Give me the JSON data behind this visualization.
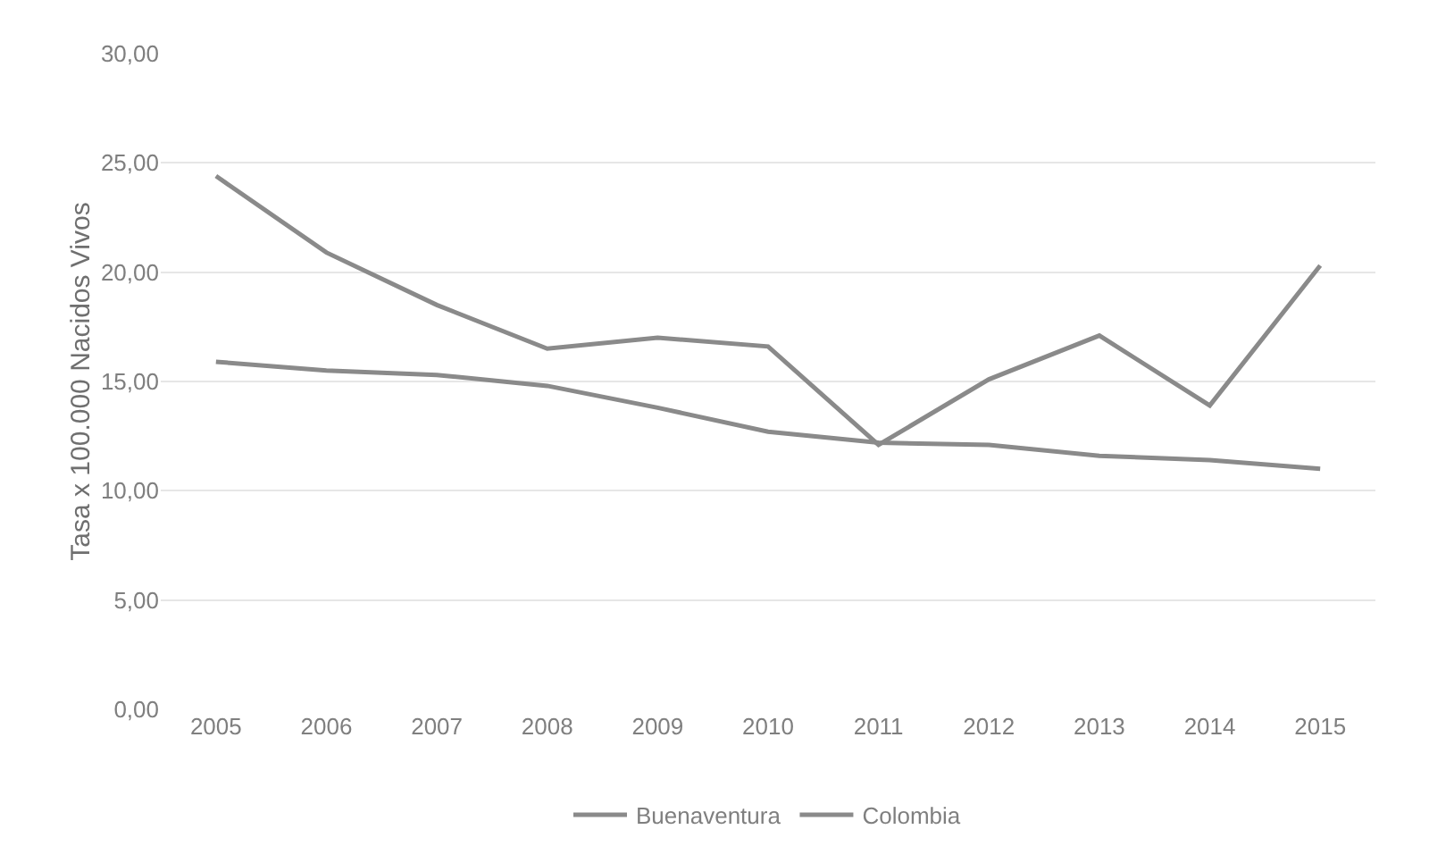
{
  "chart_data": {
    "type": "line",
    "ylabel": "Tasa x 100.000 Nacidos Vivos",
    "categories": [
      "2005",
      "2006",
      "2007",
      "2008",
      "2009",
      "2010",
      "2011",
      "2012",
      "2013",
      "2014",
      "2015"
    ],
    "series": [
      {
        "name": "Buenaventura",
        "color": "#8a8a8a",
        "values": [
          24.4,
          20.9,
          18.5,
          16.5,
          17.0,
          16.6,
          12.1,
          15.1,
          17.1,
          13.9,
          20.3
        ]
      },
      {
        "name": "Colombia",
        "color": "#8a8a8a",
        "values": [
          15.9,
          15.5,
          15.3,
          14.8,
          13.8,
          12.7,
          12.2,
          12.1,
          11.6,
          11.4,
          11.0
        ]
      }
    ],
    "ylim": [
      0,
      30
    ],
    "yticks": [
      {
        "value": 0,
        "label": "0,00"
      },
      {
        "value": 5,
        "label": "5,00"
      },
      {
        "value": 10,
        "label": "10,00"
      },
      {
        "value": 15,
        "label": "15,00"
      },
      {
        "value": 20,
        "label": "20,00"
      },
      {
        "value": 25,
        "label": "25,00"
      },
      {
        "value": 30,
        "label": "30,00"
      }
    ],
    "grid": "y",
    "legend": "bottom",
    "marker": "none",
    "line_style": "solid"
  }
}
